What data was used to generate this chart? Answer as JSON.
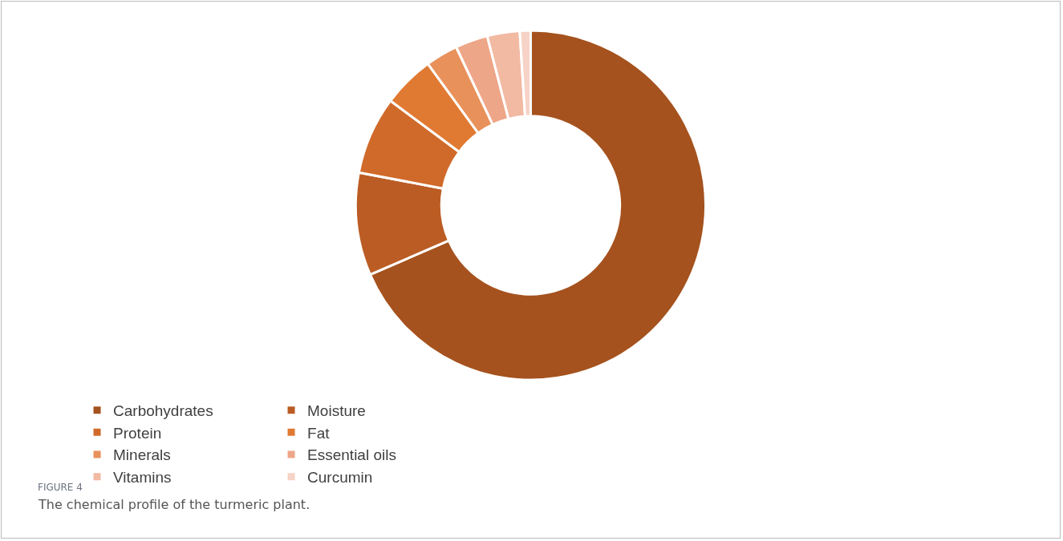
{
  "chart_data": {
    "type": "donut",
    "categories": [
      "Carbohydrates",
      "Moisture",
      "Protein",
      "Fat",
      "Minerals",
      "Essential oils",
      "Vitamins",
      "Curcumin"
    ],
    "values": [
      68.5,
      9.5,
      7.2,
      4.8,
      3,
      3,
      3,
      1
    ],
    "colors": [
      "#a5521e",
      "#bb5c24",
      "#d06a2a",
      "#e07a33",
      "#e8915a",
      "#eea688",
      "#f2b9a3",
      "#f6d3c6"
    ],
    "legend": "bottom",
    "annotations": [
      "FIGURE 4",
      "The chemical profile of the turmeric plant."
    ]
  }
}
